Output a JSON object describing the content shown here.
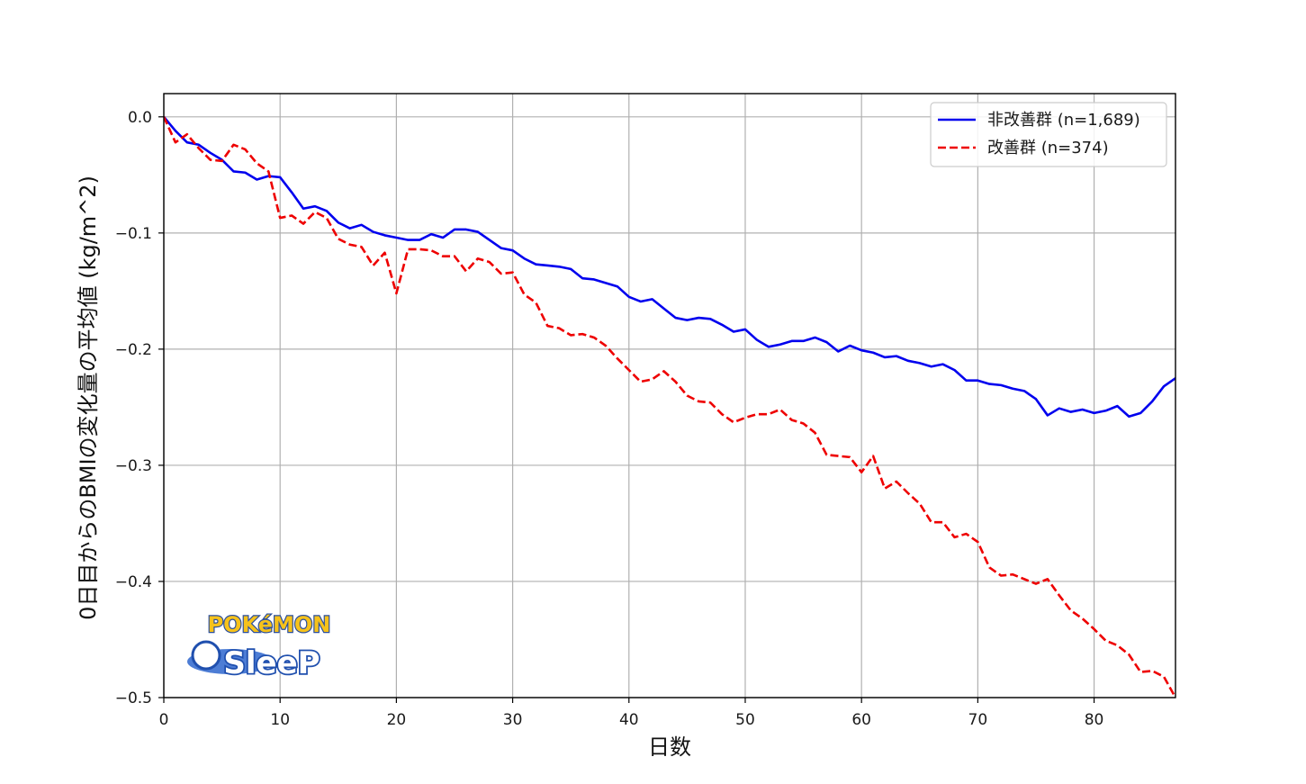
{
  "chart_data": {
    "type": "line",
    "title": "",
    "xlabel": "日数",
    "ylabel": "0日目からのBMIの変化量の平均値 (kg/m^2)",
    "xlim": [
      0,
      87
    ],
    "ylim": [
      -0.5,
      0.02
    ],
    "xticks": [
      0,
      10,
      20,
      30,
      40,
      50,
      60,
      70,
      80
    ],
    "xtick_labels": [
      "0",
      "10",
      "20",
      "30",
      "40",
      "50",
      "60",
      "70",
      "80"
    ],
    "yticks": [
      0.0,
      -0.1,
      -0.2,
      -0.3,
      -0.4,
      -0.5
    ],
    "ytick_labels": [
      "0.0",
      "−0.1",
      "−0.2",
      "−0.3",
      "−0.4",
      "−0.5"
    ],
    "grid": true,
    "legend_position": "top-right",
    "series": [
      {
        "name": "非改善群 (n=1,689)",
        "color": "#0000ee",
        "style": "solid",
        "values": [
          0.0,
          -0.012,
          -0.022,
          -0.024,
          -0.031,
          -0.037,
          -0.047,
          -0.048,
          -0.054,
          -0.051,
          -0.052,
          -0.065,
          -0.079,
          -0.077,
          -0.081,
          -0.091,
          -0.096,
          -0.093,
          -0.099,
          -0.102,
          -0.104,
          -0.106,
          -0.106,
          -0.101,
          -0.104,
          -0.097,
          -0.097,
          -0.099,
          -0.106,
          -0.113,
          -0.115,
          -0.122,
          -0.127,
          -0.128,
          -0.129,
          -0.131,
          -0.139,
          -0.14,
          -0.143,
          -0.146,
          -0.155,
          -0.159,
          -0.157,
          -0.165,
          -0.173,
          -0.175,
          -0.173,
          -0.174,
          -0.179,
          -0.185,
          -0.183,
          -0.192,
          -0.198,
          -0.196,
          -0.193,
          -0.193,
          -0.19,
          -0.194,
          -0.202,
          -0.197,
          -0.201,
          -0.203,
          -0.207,
          -0.206,
          -0.21,
          -0.212,
          -0.215,
          -0.213,
          -0.218,
          -0.227,
          -0.227,
          -0.23,
          -0.231,
          -0.234,
          -0.236,
          -0.243,
          -0.257,
          -0.251,
          -0.254,
          -0.252,
          -0.255,
          -0.253,
          -0.249,
          -0.258,
          -0.255,
          -0.245,
          -0.232,
          -0.225
        ]
      },
      {
        "name": "改善群 (n=374)",
        "color": "#ee0000",
        "style": "dashed",
        "values": [
          0.0,
          -0.022,
          -0.015,
          -0.027,
          -0.037,
          -0.038,
          -0.024,
          -0.028,
          -0.04,
          -0.047,
          -0.087,
          -0.085,
          -0.092,
          -0.082,
          -0.087,
          -0.105,
          -0.11,
          -0.112,
          -0.128,
          -0.117,
          -0.152,
          -0.114,
          -0.114,
          -0.115,
          -0.12,
          -0.12,
          -0.133,
          -0.122,
          -0.125,
          -0.135,
          -0.134,
          -0.153,
          -0.16,
          -0.18,
          -0.182,
          -0.188,
          -0.187,
          -0.19,
          -0.197,
          -0.208,
          -0.218,
          -0.228,
          -0.226,
          -0.219,
          -0.228,
          -0.24,
          -0.245,
          -0.246,
          -0.256,
          -0.263,
          -0.259,
          -0.256,
          -0.256,
          -0.252,
          -0.261,
          -0.264,
          -0.272,
          -0.291,
          -0.292,
          -0.293,
          -0.306,
          -0.292,
          -0.32,
          -0.314,
          -0.324,
          -0.333,
          -0.349,
          -0.349,
          -0.362,
          -0.359,
          -0.366,
          -0.388,
          -0.395,
          -0.394,
          -0.398,
          -0.402,
          -0.398,
          -0.412,
          -0.425,
          -0.432,
          -0.441,
          -0.451,
          -0.455,
          -0.463,
          -0.478,
          -0.477,
          -0.482,
          -0.5
        ]
      }
    ]
  },
  "logo": {
    "top_text": "POKéMON",
    "bottom_text": "SleeP"
  }
}
